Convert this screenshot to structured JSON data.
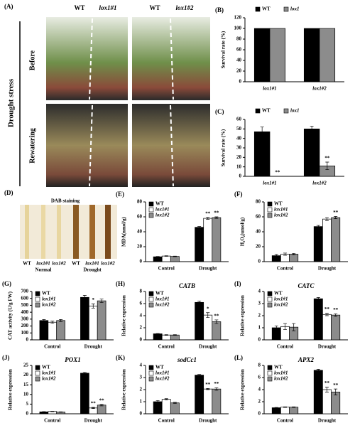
{
  "figure": {
    "A": {
      "label": "(A)",
      "columns": [
        "WT",
        "lox1#1",
        "WT",
        "lox1#2"
      ],
      "side": "Drought stress",
      "rows": [
        "Before",
        "Rewatering"
      ]
    },
    "D": {
      "label": "(D)",
      "title": "DAB staining",
      "lanes": [
        "WT",
        "lox1#1",
        "lox1#2",
        "WT",
        "lox1#1",
        "lox1#2"
      ],
      "groups": [
        "Normal",
        "Drought"
      ]
    }
  },
  "chart_data": [
    {
      "type": "bar",
      "label": "(B)",
      "ylabel": "Survival rate (%)",
      "legend": "top",
      "categories": [
        "lox1#1",
        "lox1#2"
      ],
      "ylim": [
        0,
        120
      ],
      "yticks": [
        0,
        20,
        40,
        60,
        80,
        100,
        120
      ],
      "series": [
        {
          "name": "WT",
          "color": "#000000",
          "values": [
            100,
            100
          ]
        },
        {
          "name": "lox1",
          "color": "#8c8c8c",
          "values": [
            100,
            100
          ]
        }
      ]
    },
    {
      "type": "bar",
      "label": "(C)",
      "ylabel": "Survival rate (%)",
      "legend": "top",
      "categories": [
        "lox1#1",
        "lox1#2"
      ],
      "ylim": [
        0,
        60
      ],
      "yticks": [
        0,
        10,
        20,
        30,
        40,
        50,
        60
      ],
      "series": [
        {
          "name": "WT",
          "color": "#000000",
          "values": [
            47,
            50
          ],
          "errors": [
            5,
            3
          ]
        },
        {
          "name": "lox1",
          "color": "#8c8c8c",
          "values": [
            0,
            11
          ],
          "errors": [
            0,
            4
          ],
          "annotations": [
            "**",
            "**"
          ]
        }
      ]
    },
    {
      "type": "bar",
      "label": "(E)",
      "ylabel": "MDA(nmol/g)",
      "legend": "upper left",
      "categories": [
        "Control",
        "Drought"
      ],
      "ylim": [
        0,
        80
      ],
      "yticks": [
        0,
        20,
        40,
        60,
        80
      ],
      "series": [
        {
          "name": "WT",
          "color": "#000000",
          "values": [
            6.5,
            46
          ],
          "errors": [
            0.4,
            1
          ]
        },
        {
          "name": "lox1#1",
          "color": "#ffffff",
          "values": [
            7.5,
            58
          ],
          "errors": [
            0.4,
            1.2
          ],
          "annotations": [
            null,
            "**"
          ]
        },
        {
          "name": "lox1#2",
          "color": "#8c8c8c",
          "values": [
            7,
            59
          ],
          "errors": [
            0.4,
            1
          ],
          "annotations": [
            null,
            "**"
          ]
        }
      ]
    },
    {
      "type": "bar",
      "label": "(F)",
      "ylabel": "H₂O₂(umol/g)",
      "legend": "upper left",
      "categories": [
        "Control",
        "Drought"
      ],
      "ylim": [
        0,
        80
      ],
      "yticks": [
        0,
        20,
        40,
        60,
        80
      ],
      "series": [
        {
          "name": "WT",
          "color": "#000000",
          "values": [
            8,
            47
          ],
          "errors": [
            1.5,
            1.5
          ]
        },
        {
          "name": "lox1#1",
          "color": "#ffffff",
          "values": [
            10,
            57
          ],
          "errors": [
            1.5,
            2
          ]
        },
        {
          "name": "lox1#2",
          "color": "#8c8c8c",
          "values": [
            10,
            59
          ],
          "errors": [
            1,
            1.5
          ],
          "annotations": [
            null,
            "**"
          ]
        }
      ]
    },
    {
      "type": "bar",
      "label": "(G)",
      "ylabel": "CAT activity (U/g FW)",
      "legend": "upper left",
      "categories": [
        "Control",
        "Drought"
      ],
      "ylim": [
        0,
        700
      ],
      "yticks": [
        0,
        100,
        200,
        300,
        400,
        500,
        600,
        700
      ],
      "series": [
        {
          "name": "WT",
          "color": "#000000",
          "values": [
            280,
            615
          ],
          "errors": [
            15,
            30
          ]
        },
        {
          "name": "lox1#1",
          "color": "#ffffff",
          "values": [
            255,
            490
          ],
          "errors": [
            15,
            30
          ],
          "annotations": [
            null,
            "*"
          ]
        },
        {
          "name": "lox1#2",
          "color": "#8c8c8c",
          "values": [
            280,
            565
          ],
          "errors": [
            15,
            25
          ]
        }
      ]
    },
    {
      "type": "bar",
      "label": "(H)",
      "title": "CATB",
      "ylabel": "Relative expression",
      "legend": "upper left",
      "categories": [
        "Control",
        "Drought"
      ],
      "ylim": [
        0,
        8
      ],
      "yticks": [
        0,
        2,
        4,
        6,
        8
      ],
      "series": [
        {
          "name": "WT",
          "color": "#000000",
          "values": [
            1,
            6.2
          ],
          "errors": [
            0.05,
            0.2
          ]
        },
        {
          "name": "lox1#1",
          "color": "#ffffff",
          "values": [
            0.8,
            4.1
          ],
          "errors": [
            0.05,
            0.4
          ],
          "annotations": [
            null,
            "*"
          ]
        },
        {
          "name": "lox1#2",
          "color": "#8c8c8c",
          "values": [
            0.8,
            3
          ],
          "errors": [
            0.05,
            0.3
          ],
          "annotations": [
            null,
            "**"
          ]
        }
      ]
    },
    {
      "type": "bar",
      "label": "(I)",
      "title": "CATC",
      "ylabel": "Relative expression",
      "legend": "upper left",
      "categories": [
        "Control",
        "Drought"
      ],
      "ylim": [
        0,
        4
      ],
      "yticks": [
        0,
        1,
        2,
        3,
        4
      ],
      "series": [
        {
          "name": "WT",
          "color": "#000000",
          "values": [
            1,
            3.4
          ],
          "errors": [
            0.15,
            0.1
          ]
        },
        {
          "name": "lox1#1",
          "color": "#ffffff",
          "values": [
            1.1,
            2.1
          ],
          "errors": [
            0.25,
            0.1
          ],
          "annotations": [
            null,
            "**"
          ]
        },
        {
          "name": "lox1#2",
          "color": "#8c8c8c",
          "values": [
            1.05,
            2.05
          ],
          "errors": [
            0.3,
            0.1
          ],
          "annotations": [
            null,
            "**"
          ]
        }
      ]
    },
    {
      "type": "bar",
      "label": "(J)",
      "title": "POX1",
      "ylabel": "Relative expression",
      "legend": "upper left",
      "categories": [
        "Control",
        "Drought"
      ],
      "ylim": [
        0,
        25
      ],
      "yticks": [
        0,
        5,
        10,
        15,
        20,
        25
      ],
      "series": [
        {
          "name": "WT",
          "color": "#000000",
          "values": [
            1,
            21
          ],
          "errors": [
            0.1,
            0.4
          ]
        },
        {
          "name": "lox1#1",
          "color": "#ffffff",
          "values": [
            1.2,
            3
          ],
          "errors": [
            0.1,
            0.3
          ],
          "annotations": [
            null,
            "**"
          ]
        },
        {
          "name": "lox1#2",
          "color": "#8c8c8c",
          "values": [
            0.9,
            4.5
          ],
          "errors": [
            0.1,
            0.4
          ],
          "annotations": [
            null,
            "**"
          ]
        }
      ]
    },
    {
      "type": "bar",
      "label": "(K)",
      "title": "sodCc1",
      "ylabel": "Relative expression",
      "legend": "upper left",
      "categories": [
        "Control",
        "Drought"
      ],
      "ylim": [
        0,
        4
      ],
      "yticks": [
        0,
        1,
        2,
        3,
        4
      ],
      "series": [
        {
          "name": "WT",
          "color": "#000000",
          "values": [
            1,
            3.2
          ],
          "errors": [
            0.1,
            0.05
          ]
        },
        {
          "name": "lox1#1",
          "color": "#ffffff",
          "values": [
            1.2,
            2.05
          ],
          "errors": [
            0.05,
            0.05
          ],
          "annotations": [
            null,
            "**"
          ]
        },
        {
          "name": "lox1#2",
          "color": "#8c8c8c",
          "values": [
            0.9,
            2.05
          ],
          "errors": [
            0.05,
            0.1
          ],
          "annotations": [
            null,
            "**"
          ]
        }
      ]
    },
    {
      "type": "bar",
      "label": "(L)",
      "title": "APX2",
      "ylabel": "Relative expression",
      "legend": "upper left",
      "categories": [
        "Control",
        "Drought"
      ],
      "ylim": [
        0,
        8
      ],
      "yticks": [
        0,
        2,
        4,
        6,
        8
      ],
      "series": [
        {
          "name": "WT",
          "color": "#000000",
          "values": [
            1,
            7.2
          ],
          "errors": [
            0.05,
            0.15
          ]
        },
        {
          "name": "lox1#1",
          "color": "#ffffff",
          "values": [
            1.1,
            4
          ],
          "errors": [
            0.05,
            0.4
          ],
          "annotations": [
            null,
            "**"
          ]
        },
        {
          "name": "lox1#2",
          "color": "#8c8c8c",
          "values": [
            1.1,
            3.6
          ],
          "errors": [
            0.05,
            0.5
          ],
          "annotations": [
            null,
            "**"
          ]
        }
      ]
    }
  ]
}
